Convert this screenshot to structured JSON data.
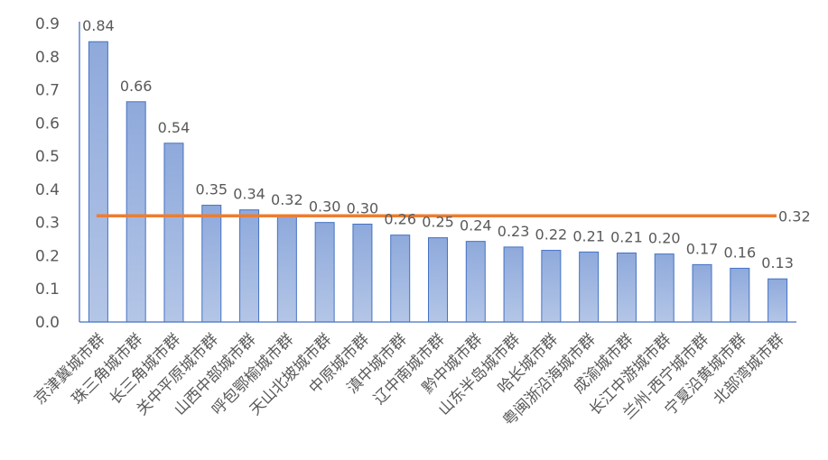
{
  "chart_data": {
    "type": "bar",
    "categories": [
      "京津冀城市群",
      "珠三角城市群",
      "长三角城市群",
      "关中平原城市群",
      "山西中部城市群",
      "呼包鄂榆城市群",
      "天山北坡城市群",
      "中原城市群",
      "滇中城市群",
      "辽中南城市群",
      "黔中城市群",
      "山东半岛城市群",
      "哈长城市群",
      "粤闽浙沿海城市群",
      "成渝城市群",
      "长江中游城市群",
      "兰州-西宁城市群",
      "宁夏沿黄城市群",
      "北部湾城市群"
    ],
    "values": [
      0.845,
      0.664,
      0.539,
      0.352,
      0.338,
      0.321,
      0.3,
      0.295,
      0.262,
      0.254,
      0.243,
      0.226,
      0.216,
      0.211,
      0.208,
      0.205,
      0.173,
      0.162,
      0.13
    ],
    "data_labels": [
      "0.84",
      "0.66",
      "0.54",
      "0.35",
      "0.34",
      "0.32",
      "0.30",
      "0.30",
      "0.26",
      "0.25",
      "0.24",
      "0.23",
      "0.22",
      "0.21",
      "0.21",
      "0.20",
      "0.17",
      "0.16",
      "0.13"
    ],
    "reference_line": {
      "value": 0.32,
      "label": "0.32",
      "color": "#ed7d31"
    },
    "ylim": [
      0,
      0.9
    ],
    "yticks": [
      "0.0",
      "0.1",
      "0.2",
      "0.3",
      "0.4",
      "0.5",
      "0.6",
      "0.7",
      "0.8",
      "0.9"
    ],
    "title": "",
    "xlabel": "",
    "ylabel": "",
    "grid": false,
    "legend": "none",
    "colors": {
      "bar_fill_top": "#8ea9db",
      "bar_fill_bottom": "#b4c6e7",
      "bar_stroke": "#4472c4",
      "axis": "#4472c4",
      "text": "#595959",
      "reference_line": "#ed7d31"
    }
  }
}
